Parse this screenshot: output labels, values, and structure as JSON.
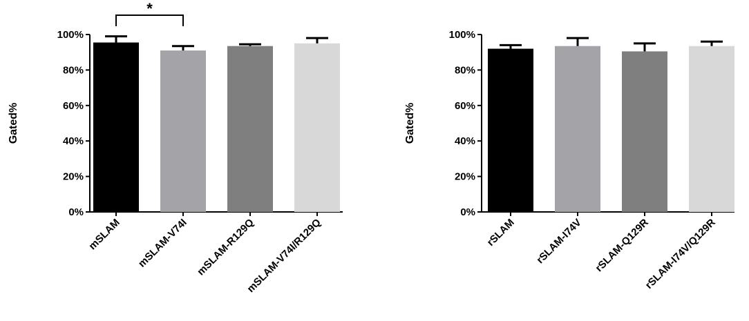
{
  "chart_data": [
    {
      "type": "bar",
      "categories": [
        "mSLAM",
        "mSLAM-V74I",
        "mSLAM-R129Q",
        "mSLAM-V74I/R129Q"
      ],
      "values": [
        95.5,
        91,
        93.5,
        95
      ],
      "errors": [
        3.5,
        2.5,
        1.0,
        3.0
      ],
      "colors": [
        "#000000",
        "#a4a4a8",
        "#7f7f7f",
        "#d8d8d8"
      ],
      "ylabel": "Gated%",
      "xlabel": "",
      "title": "",
      "ylim": [
        0,
        100
      ],
      "yticks": [
        "0%",
        "20%",
        "40%",
        "60%",
        "80%",
        "100%"
      ],
      "significance": [
        {
          "from": 0,
          "to": 1,
          "label": "*"
        }
      ]
    },
    {
      "type": "bar",
      "categories": [
        "rSLAM",
        "rSLAM-I74V",
        "rSLAM-Q129R",
        "rSLAM-I74V/Q129R"
      ],
      "values": [
        92,
        93.5,
        90.5,
        93.5
      ],
      "errors": [
        2.0,
        4.5,
        4.5,
        2.5
      ],
      "colors": [
        "#000000",
        "#a4a4a8",
        "#7f7f7f",
        "#d8d8d8"
      ],
      "ylabel": "Gated%",
      "xlabel": "",
      "title": "",
      "ylim": [
        0,
        100
      ],
      "yticks": [
        "0%",
        "20%",
        "40%",
        "60%",
        "80%",
        "100%"
      ],
      "significance": []
    }
  ]
}
